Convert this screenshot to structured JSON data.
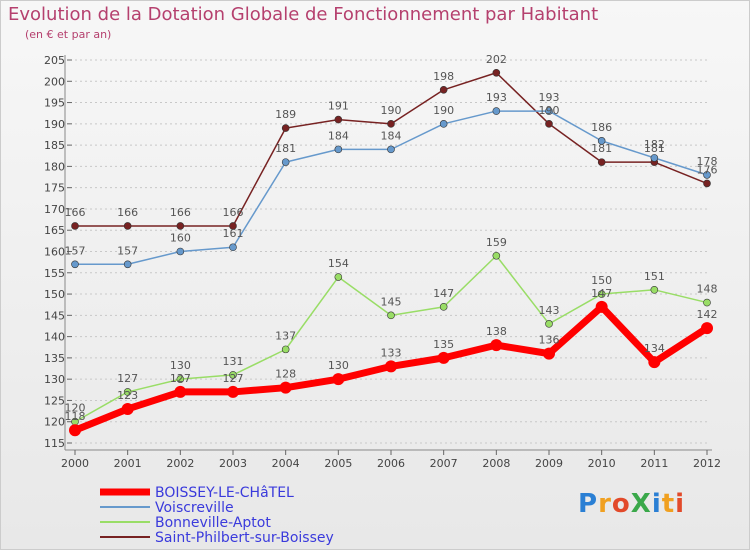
{
  "title": "Evolution de la Dotation Globale de Fonctionnement par Habitant",
  "subtitle": "(en € et par an)",
  "logo": "ProXiti",
  "chart_data": {
    "type": "line",
    "title": "Evolution de la Dotation Globale de Fonctionnement par Habitant",
    "subtitle": "(en € et par an)",
    "x": [
      2000,
      2001,
      2002,
      2003,
      2004,
      2005,
      2006,
      2007,
      2008,
      2009,
      2010,
      2011,
      2012
    ],
    "ylim": [
      115,
      205
    ],
    "yticks": [
      115,
      120,
      125,
      130,
      135,
      140,
      145,
      150,
      155,
      160,
      165,
      170,
      175,
      180,
      185,
      190,
      195,
      200,
      205
    ],
    "grid": "horizontal dotted",
    "legend": "bottom-left",
    "series": [
      {
        "name": "BOISSEY-LE-CHâTEL",
        "color": "#ff0000",
        "values": [
          118,
          123,
          127,
          127,
          128,
          130,
          133,
          135,
          138,
          136,
          147,
          134,
          142
        ]
      },
      {
        "name": "Voiscreville",
        "color": "#6699cc",
        "values": [
          157,
          157,
          160,
          161,
          181,
          184,
          184,
          190,
          193,
          193,
          186,
          182,
          178
        ]
      },
      {
        "name": "Bonneville-Aptot",
        "color": "#99dd66",
        "values": [
          120,
          127,
          130,
          131,
          137,
          154,
          145,
          147,
          159,
          143,
          150,
          151,
          148
        ]
      },
      {
        "name": "Saint-Philbert-sur-Boissey",
        "color": "#772222",
        "values": [
          166,
          166,
          166,
          166,
          189,
          191,
          190,
          198,
          202,
          190,
          181,
          181,
          176
        ]
      }
    ]
  }
}
